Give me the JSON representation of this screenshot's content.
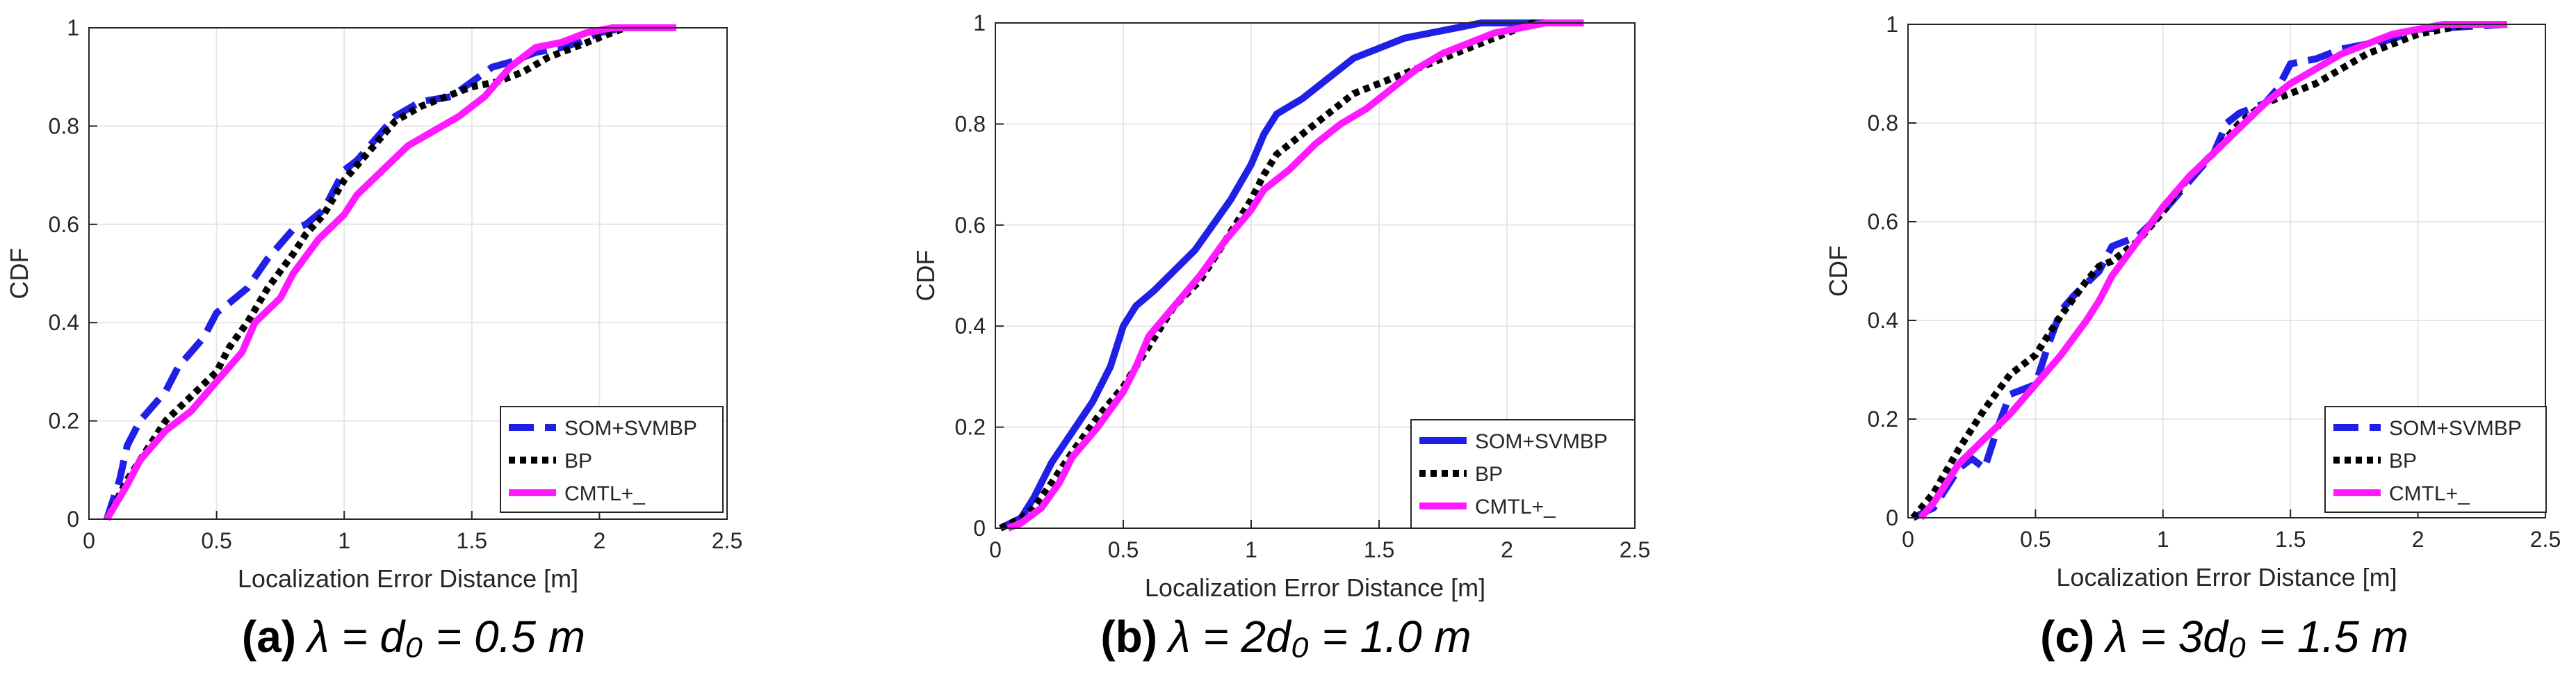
{
  "figure": {
    "panels": [
      {
        "caption": {
          "letter": "(a)",
          "math": "λ = d₀ = 0.5 m"
        },
        "legend": {
          "labels": [
            "SOM+SVMBP",
            "BP",
            "CMTL+_"
          ]
        }
      },
      {
        "caption": {
          "letter": "(b)",
          "math": "λ = 2d₀ = 1.0 m"
        },
        "legend": {
          "labels": [
            "SOM+SVMBP",
            "BP",
            "CMTL+_"
          ]
        }
      },
      {
        "caption": {
          "letter": "(c)",
          "math": "λ = 3d₀ = 1.5 m"
        },
        "legend": {
          "labels": [
            "SOM+SVMBP",
            "BP",
            "CMTL+_"
          ]
        }
      }
    ]
  },
  "colors": {
    "som": "#1f1fe6",
    "bp": "#000000",
    "cmtl": "#ff1aff",
    "grid": "#e6e6e6",
    "axis": "#262626"
  },
  "chart_data": [
    {
      "type": "line",
      "title": "",
      "xlabel": "Localization Error Distance [m]",
      "ylabel": "CDF",
      "xlim": [
        0,
        2.5
      ],
      "ylim": [
        0,
        1
      ],
      "xticks": [
        0,
        0.5,
        1,
        1.5,
        2,
        2.5
      ],
      "xtick_labels": [
        "0",
        "0.5",
        "1",
        "1.5",
        "2",
        "2.5"
      ],
      "yticks": [
        0,
        0.2,
        0.4,
        0.6,
        0.8,
        1
      ],
      "ytick_labels": [
        "0",
        "0.2",
        "0.4",
        "0.6",
        "0.8",
        "1"
      ],
      "grid": true,
      "legend_position": "bottom-right",
      "series": [
        {
          "name": "SOM+SVMBP",
          "style": "dashed",
          "x": [
            0.07,
            0.12,
            0.15,
            0.2,
            0.3,
            0.35,
            0.45,
            0.5,
            0.55,
            0.62,
            0.7,
            0.8,
            0.85,
            0.92,
            1.0,
            1.05,
            1.15,
            1.2,
            1.3,
            1.42,
            1.5,
            1.58,
            1.65,
            1.75,
            1.85,
            1.92,
            2.0,
            2.1,
            2.3
          ],
          "y": [
            0.0,
            0.08,
            0.15,
            0.2,
            0.26,
            0.31,
            0.37,
            0.42,
            0.44,
            0.47,
            0.53,
            0.59,
            0.6,
            0.63,
            0.71,
            0.73,
            0.79,
            0.82,
            0.85,
            0.86,
            0.89,
            0.92,
            0.93,
            0.95,
            0.96,
            0.97,
            0.99,
            1.0,
            1.0
          ]
        },
        {
          "name": "BP",
          "style": "dotted",
          "x": [
            0.07,
            0.15,
            0.2,
            0.3,
            0.4,
            0.5,
            0.55,
            0.62,
            0.7,
            0.8,
            0.85,
            0.92,
            1.0,
            1.05,
            1.15,
            1.2,
            1.3,
            1.4,
            1.5,
            1.6,
            1.7,
            1.8,
            1.9,
            2.0,
            2.1,
            2.3
          ],
          "y": [
            0.0,
            0.08,
            0.12,
            0.2,
            0.25,
            0.3,
            0.35,
            0.4,
            0.47,
            0.54,
            0.58,
            0.62,
            0.69,
            0.72,
            0.78,
            0.81,
            0.84,
            0.86,
            0.88,
            0.89,
            0.91,
            0.94,
            0.96,
            0.98,
            1.0,
            1.0
          ]
        },
        {
          "name": "CMTL+_",
          "style": "solid",
          "x": [
            0.07,
            0.15,
            0.2,
            0.3,
            0.4,
            0.5,
            0.6,
            0.65,
            0.75,
            0.8,
            0.9,
            1.0,
            1.05,
            1.15,
            1.25,
            1.35,
            1.45,
            1.55,
            1.65,
            1.75,
            1.85,
            1.95,
            2.05,
            2.3
          ],
          "y": [
            0.0,
            0.07,
            0.12,
            0.18,
            0.22,
            0.28,
            0.34,
            0.4,
            0.45,
            0.5,
            0.57,
            0.62,
            0.66,
            0.71,
            0.76,
            0.79,
            0.82,
            0.86,
            0.92,
            0.96,
            0.97,
            0.99,
            1.0,
            1.0
          ]
        }
      ]
    },
    {
      "type": "line",
      "title": "",
      "xlabel": "Localization Error Distance [m]",
      "ylabel": "CDF",
      "xlim": [
        0,
        2.5
      ],
      "ylim": [
        0,
        1
      ],
      "xticks": [
        0,
        0.5,
        1,
        1.5,
        2,
        2.5
      ],
      "xtick_labels": [
        "0",
        "0.5",
        "1",
        "1.5",
        "2",
        "2.5"
      ],
      "yticks": [
        0,
        0.2,
        0.4,
        0.6,
        0.8,
        1
      ],
      "ytick_labels": [
        "0",
        "0.2",
        "0.4",
        "0.6",
        "0.8",
        "1"
      ],
      "grid": true,
      "legend_position": "bottom-right",
      "series": [
        {
          "name": "SOM+SVMBP",
          "style": "solid",
          "x": [
            0.02,
            0.1,
            0.15,
            0.22,
            0.3,
            0.38,
            0.45,
            0.5,
            0.55,
            0.62,
            0.7,
            0.78,
            0.85,
            0.92,
            1.0,
            1.05,
            1.1,
            1.2,
            1.3,
            1.4,
            1.5,
            1.6,
            1.7,
            1.8,
            1.9,
            2.0,
            2.3
          ],
          "y": [
            0.0,
            0.02,
            0.06,
            0.13,
            0.19,
            0.25,
            0.32,
            0.4,
            0.44,
            0.47,
            0.51,
            0.55,
            0.6,
            0.65,
            0.72,
            0.78,
            0.82,
            0.85,
            0.89,
            0.93,
            0.95,
            0.97,
            0.98,
            0.99,
            1.0,
            1.0,
            1.0
          ]
        },
        {
          "name": "BP",
          "style": "dotted",
          "x": [
            0.02,
            0.1,
            0.15,
            0.22,
            0.3,
            0.4,
            0.5,
            0.6,
            0.7,
            0.8,
            0.9,
            1.0,
            1.05,
            1.1,
            1.2,
            1.3,
            1.4,
            1.5,
            1.6,
            1.7,
            1.8,
            1.9,
            2.0,
            2.1,
            2.3
          ],
          "y": [
            0.0,
            0.02,
            0.04,
            0.09,
            0.15,
            0.22,
            0.28,
            0.36,
            0.44,
            0.49,
            0.57,
            0.65,
            0.7,
            0.74,
            0.78,
            0.82,
            0.86,
            0.88,
            0.9,
            0.92,
            0.94,
            0.96,
            0.98,
            1.0,
            1.0
          ]
        },
        {
          "name": "CMTL+_",
          "style": "solid",
          "x": [
            0.05,
            0.1,
            0.18,
            0.25,
            0.3,
            0.4,
            0.5,
            0.55,
            0.6,
            0.7,
            0.8,
            0.9,
            1.0,
            1.05,
            1.15,
            1.25,
            1.35,
            1.45,
            1.55,
            1.65,
            1.75,
            1.85,
            1.95,
            2.05,
            2.15,
            2.3
          ],
          "y": [
            0.0,
            0.01,
            0.04,
            0.09,
            0.14,
            0.2,
            0.27,
            0.32,
            0.38,
            0.44,
            0.5,
            0.57,
            0.63,
            0.67,
            0.71,
            0.76,
            0.8,
            0.83,
            0.87,
            0.91,
            0.94,
            0.96,
            0.98,
            0.99,
            1.0,
            1.0
          ]
        }
      ]
    },
    {
      "type": "line",
      "title": "",
      "xlabel": "Localization Error Distance [m]",
      "ylabel": "CDF",
      "xlim": [
        0,
        2.5
      ],
      "ylim": [
        0,
        1
      ],
      "xticks": [
        0,
        0.5,
        1,
        1.5,
        2,
        2.5
      ],
      "xtick_labels": [
        "0",
        "0.5",
        "1",
        "1.5",
        "2",
        "2.5"
      ],
      "yticks": [
        0,
        0.2,
        0.4,
        0.6,
        0.8,
        1
      ],
      "ytick_labels": [
        "0",
        "0.2",
        "0.4",
        "0.6",
        "0.8",
        "1"
      ],
      "grid": true,
      "legend_position": "bottom-right",
      "series": [
        {
          "name": "SOM+SVMBP",
          "style": "dashed",
          "x": [
            0.02,
            0.1,
            0.2,
            0.25,
            0.3,
            0.35,
            0.4,
            0.5,
            0.55,
            0.6,
            0.65,
            0.75,
            0.8,
            0.9,
            1.0,
            1.1,
            1.2,
            1.25,
            1.3,
            1.4,
            1.45,
            1.5,
            1.6,
            1.7,
            1.8,
            1.9,
            2.0,
            2.35
          ],
          "y": [
            0.0,
            0.02,
            0.1,
            0.12,
            0.1,
            0.18,
            0.25,
            0.27,
            0.35,
            0.42,
            0.45,
            0.5,
            0.55,
            0.57,
            0.62,
            0.68,
            0.74,
            0.8,
            0.82,
            0.84,
            0.87,
            0.92,
            0.93,
            0.95,
            0.96,
            0.97,
            0.99,
            1.0
          ]
        },
        {
          "name": "BP",
          "style": "dotted",
          "x": [
            0.02,
            0.1,
            0.2,
            0.3,
            0.4,
            0.5,
            0.55,
            0.6,
            0.7,
            0.75,
            0.8,
            0.9,
            1.0,
            1.1,
            1.2,
            1.3,
            1.4,
            1.5,
            1.6,
            1.7,
            1.8,
            1.9,
            2.0,
            2.1,
            2.2,
            2.35
          ],
          "y": [
            0.0,
            0.05,
            0.14,
            0.22,
            0.29,
            0.33,
            0.37,
            0.41,
            0.48,
            0.51,
            0.52,
            0.56,
            0.62,
            0.69,
            0.74,
            0.8,
            0.84,
            0.86,
            0.88,
            0.91,
            0.94,
            0.96,
            0.98,
            0.99,
            1.0,
            1.0
          ]
        },
        {
          "name": "CMTL+_",
          "style": "solid",
          "x": [
            0.05,
            0.1,
            0.2,
            0.3,
            0.4,
            0.5,
            0.6,
            0.7,
            0.75,
            0.8,
            0.9,
            1.0,
            1.1,
            1.2,
            1.3,
            1.4,
            1.5,
            1.6,
            1.7,
            1.8,
            1.9,
            2.0,
            2.1,
            2.35
          ],
          "y": [
            0.0,
            0.03,
            0.11,
            0.16,
            0.21,
            0.27,
            0.33,
            0.4,
            0.44,
            0.49,
            0.56,
            0.63,
            0.69,
            0.74,
            0.79,
            0.84,
            0.88,
            0.91,
            0.94,
            0.96,
            0.98,
            0.99,
            1.0,
            1.0
          ]
        }
      ]
    }
  ]
}
